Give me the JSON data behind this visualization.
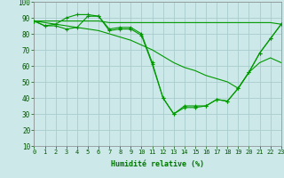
{
  "xlabel": "Humidité relative (%)",
  "background_color": "#cce8e8",
  "grid_color": "#aacccc",
  "line_color": "#009900",
  "xlim": [
    0,
    23
  ],
  "ylim": [
    10,
    100
  ],
  "yticks": [
    10,
    20,
    30,
    40,
    50,
    60,
    70,
    80,
    90,
    100
  ],
  "xticks": [
    0,
    1,
    2,
    3,
    4,
    5,
    6,
    7,
    8,
    9,
    10,
    11,
    12,
    13,
    14,
    15,
    16,
    17,
    18,
    19,
    20,
    21,
    22,
    23
  ],
  "series": [
    {
      "x": [
        0,
        1,
        2,
        3,
        4,
        5,
        6,
        7,
        8,
        9,
        10,
        11,
        12,
        13,
        14,
        15,
        16,
        17,
        18,
        19,
        20,
        21,
        22,
        23
      ],
      "y": [
        88,
        85,
        86,
        90,
        92,
        92,
        91,
        83,
        84,
        84,
        80,
        62,
        40,
        30,
        35,
        35,
        35,
        39,
        38,
        46,
        56,
        68,
        77,
        86
      ],
      "marker": true
    },
    {
      "x": [
        0,
        1,
        2,
        3,
        4,
        5,
        6,
        7,
        8,
        9,
        10,
        11,
        12,
        13,
        14,
        15,
        16,
        17,
        18,
        19,
        20,
        21,
        22,
        23
      ],
      "y": [
        88,
        85,
        85,
        83,
        84,
        91,
        91,
        82,
        83,
        83,
        79,
        61,
        40,
        30,
        34,
        34,
        35,
        39,
        38,
        46,
        56,
        68,
        77,
        86
      ],
      "marker": true
    },
    {
      "x": [
        0,
        1,
        2,
        3,
        4,
        5,
        6,
        7,
        8,
        9,
        10,
        11,
        12,
        13,
        14,
        15,
        16,
        17,
        18,
        19,
        20,
        21,
        22,
        23
      ],
      "y": [
        88,
        88,
        88,
        88,
        88,
        88,
        88,
        87,
        87,
        87,
        87,
        87,
        87,
        87,
        87,
        87,
        87,
        87,
        87,
        87,
        87,
        87,
        87,
        86
      ],
      "marker": false
    },
    {
      "x": [
        0,
        1,
        2,
        3,
        4,
        5,
        6,
        7,
        8,
        9,
        10,
        11,
        12,
        13,
        14,
        15,
        16,
        17,
        18,
        19,
        20,
        21,
        22,
        23
      ],
      "y": [
        88,
        87,
        86,
        85,
        84,
        83,
        82,
        80,
        78,
        76,
        73,
        70,
        66,
        62,
        59,
        57,
        54,
        52,
        50,
        46,
        56,
        62,
        65,
        62
      ],
      "marker": false
    }
  ]
}
